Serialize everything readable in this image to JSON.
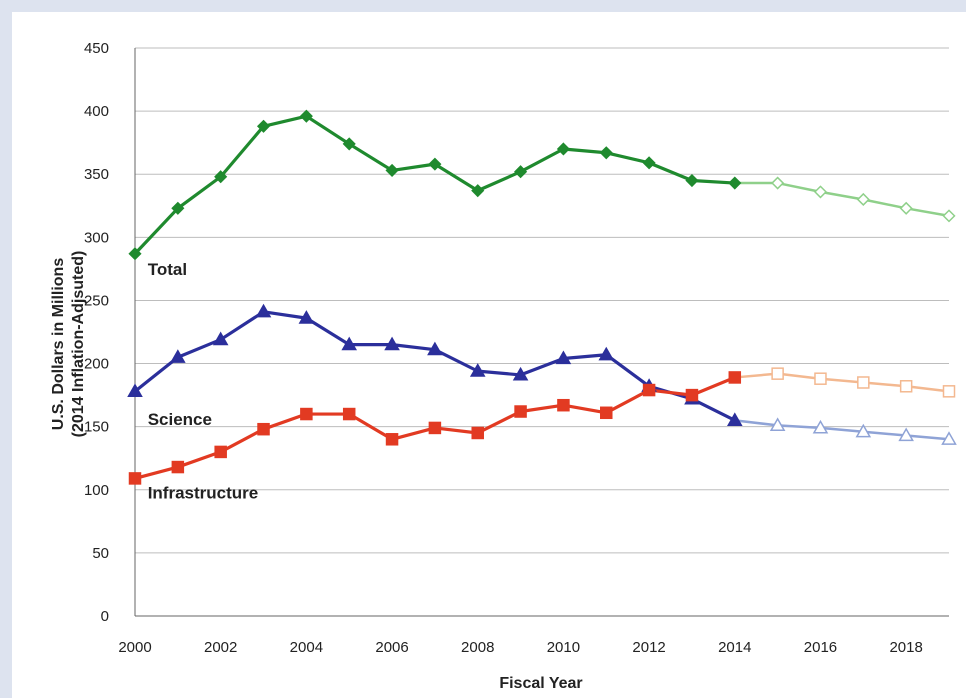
{
  "chart_data": {
    "type": "line",
    "xlabel": "Fiscal Year",
    "ylabel_line1": "U.S. Dollars in Millions",
    "ylabel_line2": "(2014  Inflation-Adjsuted)",
    "xlim": [
      2000,
      2019
    ],
    "ylim": [
      0,
      450
    ],
    "x_ticks": [
      "2000",
      "2002",
      "2004",
      "2006",
      "2008",
      "2010",
      "2012",
      "2014",
      "2016",
      "2018"
    ],
    "y_ticks": [
      "0",
      "50",
      "100",
      "150",
      "200",
      "250",
      "300",
      "350",
      "400",
      "450"
    ],
    "grid": "horizontal",
    "series": [
      {
        "name": "Total",
        "color": "#1f8a2e",
        "projected_color": "#8fd08a",
        "marker": "diamond",
        "x": [
          2000,
          2001,
          2002,
          2003,
          2004,
          2005,
          2006,
          2007,
          2008,
          2009,
          2010,
          2011,
          2012,
          2013,
          2014
        ],
        "values": [
          287,
          323,
          348,
          388,
          396,
          374,
          353,
          358,
          337,
          352,
          370,
          367,
          359,
          345,
          343
        ],
        "projected_x": [
          2014,
          2015,
          2016,
          2017,
          2018,
          2019
        ],
        "projected_values": [
          343,
          343,
          336,
          330,
          323,
          317
        ]
      },
      {
        "name": "Science",
        "color": "#2b2f9b",
        "projected_color": "#8fa3d6",
        "marker": "triangle",
        "x": [
          2000,
          2001,
          2002,
          2003,
          2004,
          2005,
          2006,
          2007,
          2008,
          2009,
          2010,
          2011,
          2012,
          2013,
          2014
        ],
        "values": [
          178,
          205,
          219,
          241,
          236,
          215,
          215,
          211,
          194,
          191,
          204,
          207,
          182,
          172,
          155
        ],
        "projected_x": [
          2014,
          2015,
          2016,
          2017,
          2018,
          2019
        ],
        "projected_values": [
          155,
          151,
          149,
          146,
          143,
          140
        ]
      },
      {
        "name": "Infrastructure",
        "color": "#e23a22",
        "projected_color": "#f3b890",
        "marker": "square",
        "x": [
          2000,
          2001,
          2002,
          2003,
          2004,
          2005,
          2006,
          2007,
          2008,
          2009,
          2010,
          2011,
          2012,
          2013,
          2014
        ],
        "values": [
          109,
          118,
          130,
          148,
          160,
          160,
          140,
          149,
          145,
          162,
          167,
          161,
          179,
          175,
          189
        ],
        "projected_x": [
          2014,
          2015,
          2016,
          2017,
          2018,
          2019
        ],
        "projected_values": [
          189,
          192,
          188,
          185,
          182,
          178
        ]
      }
    ]
  }
}
